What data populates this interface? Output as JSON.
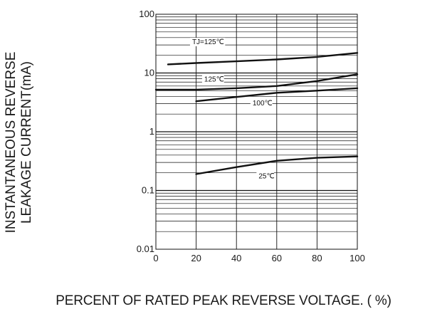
{
  "chart_data": {
    "type": "line",
    "title": "",
    "xlabel": "PERCENT  OF  RATED PEAK REVERSE VOLTAGE. ( %)",
    "ylabel_lines": [
      "INSTANTANEOUS REVERSE",
      "LEAKAGE CURRENT(mA)"
    ],
    "xlim": [
      0,
      100
    ],
    "ylim": [
      0.01,
      100
    ],
    "yscale": "log",
    "grid": true,
    "x_ticks": [
      0,
      20,
      40,
      60,
      80,
      100
    ],
    "x_tick_labels": [
      "0",
      "20",
      "40",
      "60",
      "80",
      "100"
    ],
    "y_ticks": [
      0.01,
      0.1,
      1,
      10,
      100
    ],
    "y_tick_labels": [
      "0.01",
      "0.1",
      "1",
      "10",
      "100"
    ],
    "series": [
      {
        "label": "TJ=125℃",
        "x": [
          6,
          20,
          40,
          60,
          80,
          100
        ],
        "y": [
          14,
          14.8,
          15.8,
          17,
          18.8,
          22
        ]
      },
      {
        "label": "125℃",
        "x": [
          0,
          20,
          40,
          60,
          80,
          100
        ],
        "y": [
          5.2,
          5.2,
          5.5,
          6.0,
          7.3,
          9.5
        ]
      },
      {
        "label": "100℃",
        "x": [
          20,
          40,
          60,
          80,
          100
        ],
        "y": [
          3.3,
          3.9,
          4.6,
          5.0,
          5.5
        ]
      },
      {
        "label": "25℃",
        "x": [
          20,
          40,
          60,
          80,
          100
        ],
        "y": [
          0.19,
          0.25,
          0.32,
          0.36,
          0.38
        ]
      }
    ],
    "line_color": "#111111"
  }
}
